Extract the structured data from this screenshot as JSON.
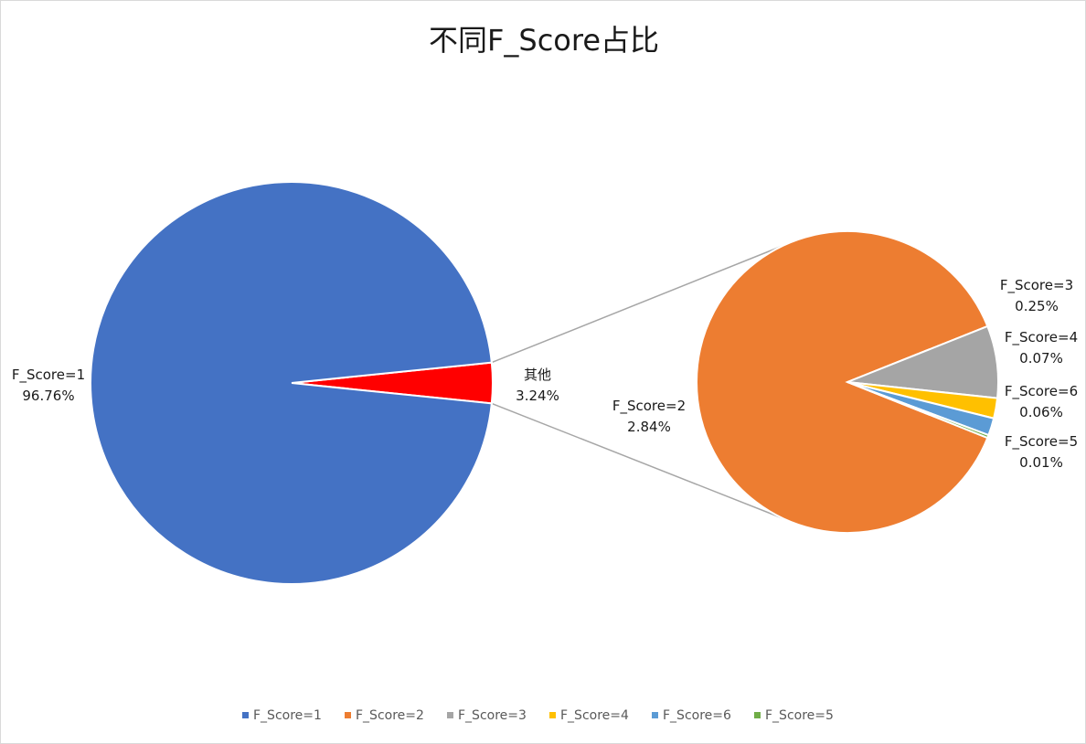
{
  "chart_data": {
    "type": "pie",
    "subtype": "pie-of-pie",
    "title": "不同F_Score占比",
    "primary": {
      "slices": [
        {
          "name": "F_Score=1",
          "value": 96.76,
          "label": "96.76%",
          "color": "#4472C4"
        },
        {
          "name": "其他",
          "value": 3.24,
          "label": "3.24%",
          "color": "#FF0000"
        }
      ]
    },
    "secondary": {
      "slices": [
        {
          "name": "F_Score=2",
          "value": 2.84,
          "label": "2.84%",
          "color": "#ED7D31"
        },
        {
          "name": "F_Score=3",
          "value": 0.25,
          "label": "0.25%",
          "color": "#A5A5A5"
        },
        {
          "name": "F_Score=4",
          "value": 0.07,
          "label": "0.07%",
          "color": "#FFC000"
        },
        {
          "name": "F_Score=6",
          "value": 0.06,
          "label": "0.06%",
          "color": "#5B9BD5"
        },
        {
          "name": "F_Score=5",
          "value": 0.01,
          "label": "0.01%",
          "color": "#70AD47"
        }
      ]
    },
    "legend": {
      "position": "bottom",
      "items": [
        {
          "name": "F_Score=1",
          "color": "#4472C4"
        },
        {
          "name": "F_Score=2",
          "color": "#ED7D31"
        },
        {
          "name": "F_Score=3",
          "color": "#A5A5A5"
        },
        {
          "name": "F_Score=4",
          "color": "#FFC000"
        },
        {
          "name": "F_Score=6",
          "color": "#5B9BD5"
        },
        {
          "name": "F_Score=5",
          "color": "#70AD47"
        }
      ]
    },
    "connector_color": "#A6A6A6"
  }
}
